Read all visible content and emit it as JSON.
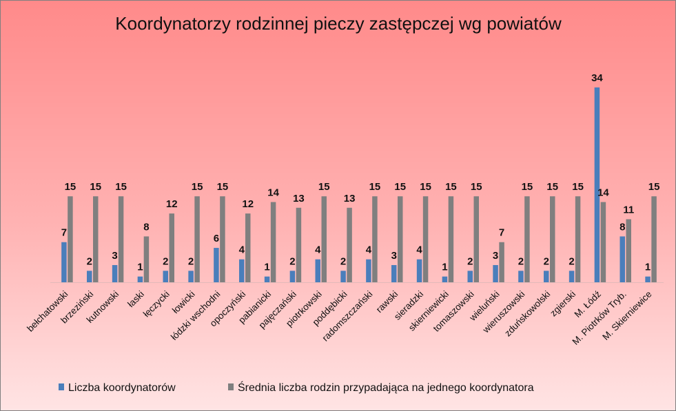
{
  "chart_data": {
    "type": "bar",
    "title": "Koordynatorzy  rodzinnej pieczy zastępczej wg powiatów",
    "categories": [
      "bełchatowski",
      "brzeziński",
      "kutnowski",
      "łaski",
      "łęczycki",
      "łowicki",
      "łódzki wschodni",
      "opoczyński",
      "pabianicki",
      "pajęczański",
      "piotrkowski",
      "poddębicki",
      "radomszczański",
      "rawski",
      "sieradzki",
      "skierniewicki",
      "tomaszowski",
      "wieluński",
      "wieruszowski",
      "zduńskowolski",
      "zgierski",
      "M. Łódź",
      "M. Piotrków Tryb.",
      "M. Skierniewice"
    ],
    "series": [
      {
        "name": "Liczba koordynatorów",
        "color": "#4a7ebb",
        "values": [
          7,
          2,
          3,
          1,
          2,
          2,
          6,
          4,
          1,
          2,
          4,
          2,
          4,
          3,
          4,
          1,
          2,
          3,
          2,
          2,
          2,
          34,
          8,
          1
        ]
      },
      {
        "name": "Średnia liczba rodzin przypadająca na jednego koordynatora",
        "color": "#7f7f7f",
        "values": [
          15,
          15,
          15,
          8,
          12,
          15,
          15,
          12,
          14,
          13,
          15,
          13,
          15,
          15,
          15,
          15,
          15,
          7,
          15,
          15,
          15,
          14,
          11,
          15
        ]
      }
    ],
    "ylim": [
      0,
      35
    ],
    "grid": false,
    "legend_position": "bottom"
  }
}
